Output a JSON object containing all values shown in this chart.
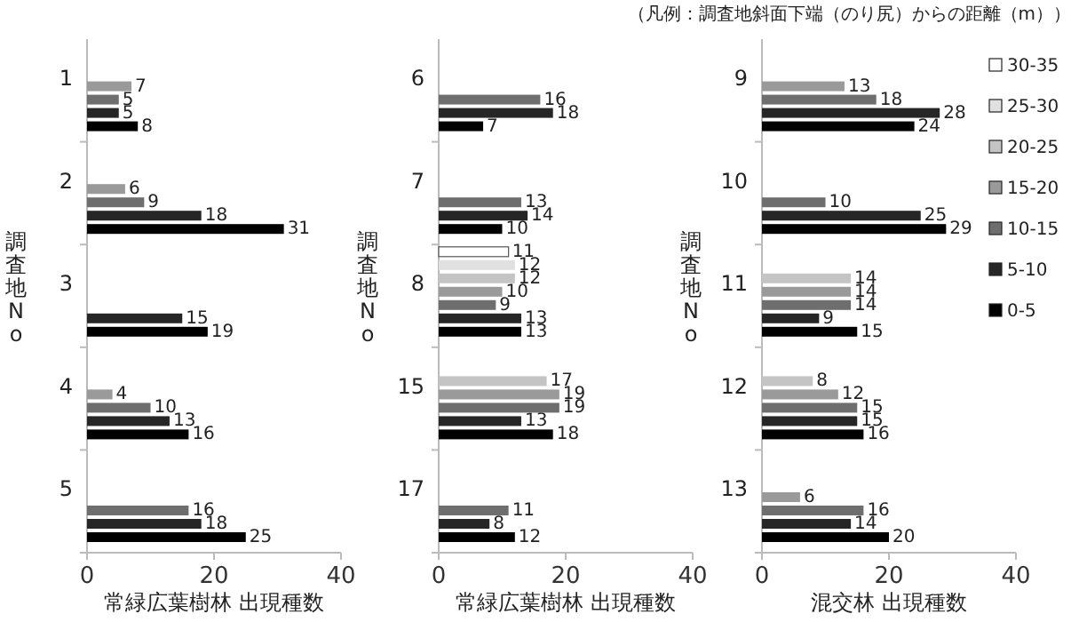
{
  "chart_data": [
    {
      "type": "bar",
      "orientation": "horizontal",
      "categories": [
        "1",
        "2",
        "3",
        "4",
        "5"
      ],
      "xlim": [
        0,
        40
      ],
      "xticks": [
        0,
        20,
        40
      ],
      "xlabel": "常緑広葉樹林 出現種数",
      "ylabel": "調査地No",
      "data_labels": true,
      "series": [
        {
          "color": "#000000",
          "values": [
            8,
            31,
            19,
            16,
            25
          ]
        },
        {
          "color": "#262626",
          "values": [
            5,
            18,
            15,
            13,
            18
          ]
        },
        {
          "color": "#6e6e6e",
          "values": [
            5,
            9,
            null,
            10,
            16
          ]
        },
        {
          "color": "#9a9a9a",
          "values": [
            7,
            6,
            null,
            4,
            null
          ]
        }
      ]
    },
    {
      "type": "bar",
      "orientation": "horizontal",
      "categories": [
        "6",
        "7",
        "8",
        "15",
        "17"
      ],
      "xlim": [
        0,
        40
      ],
      "xticks": [
        0,
        20,
        40
      ],
      "xlabel": "常緑広葉樹林 出現種数",
      "ylabel": "調査地No",
      "data_labels": true,
      "series": [
        {
          "color": "#000000",
          "values": [
            7,
            10,
            13,
            18,
            12
          ]
        },
        {
          "color": "#262626",
          "values": [
            18,
            14,
            13,
            13,
            8
          ]
        },
        {
          "color": "#6e6e6e",
          "values": [
            16,
            13,
            9,
            19,
            11
          ]
        },
        {
          "color": "#9a9a9a",
          "values": [
            null,
            null,
            10,
            19,
            null
          ]
        },
        {
          "color": "#c4c4c4",
          "values": [
            null,
            null,
            12,
            17,
            null
          ]
        },
        {
          "color": "#e0e0e0",
          "values": [
            null,
            null,
            12,
            null,
            null
          ]
        },
        {
          "color": "#ffffff",
          "values": [
            null,
            null,
            11,
            null,
            null
          ]
        }
      ]
    },
    {
      "type": "bar",
      "orientation": "horizontal",
      "categories": [
        "9",
        "10",
        "11",
        "12",
        "13"
      ],
      "xlim": [
        0,
        40
      ],
      "xticks": [
        0,
        20,
        40
      ],
      "xlabel": "混交林 出現種数",
      "ylabel": "調査地No",
      "data_labels": true,
      "legend": "right",
      "legend_title": "（凡例：調査地斜面下端（のり尻）からの距離（m））",
      "series": [
        {
          "name": "0-5",
          "color": "#000000",
          "values": [
            24,
            29,
            15,
            16,
            20
          ]
        },
        {
          "name": "5-10",
          "color": "#262626",
          "values": [
            28,
            25,
            9,
            15,
            14
          ]
        },
        {
          "name": "10-15",
          "color": "#6e6e6e",
          "values": [
            18,
            10,
            14,
            15,
            16
          ]
        },
        {
          "name": "15-20",
          "color": "#9a9a9a",
          "values": [
            13,
            null,
            14,
            12,
            6
          ]
        },
        {
          "name": "20-25",
          "color": "#c4c4c4",
          "values": [
            null,
            null,
            14,
            8,
            null
          ]
        },
        {
          "name": "25-30",
          "color": "#e0e0e0",
          "values": [
            null,
            null,
            null,
            null,
            null
          ]
        },
        {
          "name": "30-35",
          "color": "#ffffff",
          "values": [
            null,
            null,
            null,
            null,
            null
          ]
        }
      ]
    }
  ]
}
